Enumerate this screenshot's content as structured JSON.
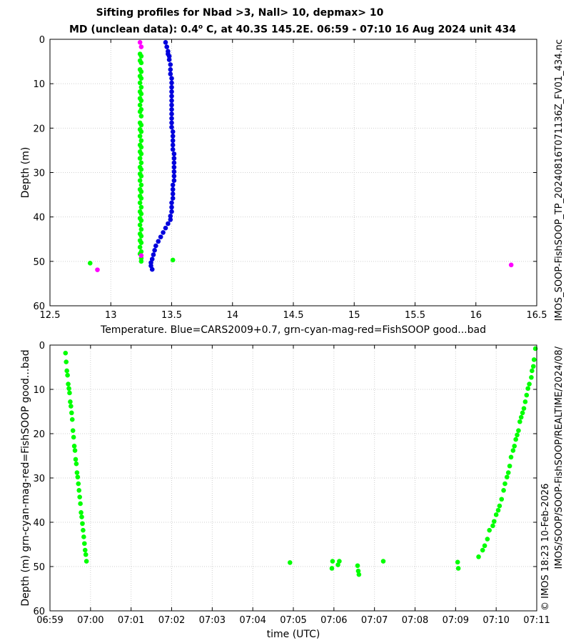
{
  "title_line1": "Sifting profiles for Nbad >3, Nall> 10, depmax> 10",
  "title_line2_pre": "MD (unclean data): 0.4",
  "title_line2_sup": "o",
  "title_line2_post": " C, at 40.3S 145.2E. 06:59 - 07:10 16 Aug 2024 unit 434",
  "side_text_outer": "IMOS_SOOP-FishSOOP_TP_20240816T071136Z_FV01_434.nc",
  "side_text_inner": "IMOS/SOOP/SOOP-FishSOOP/REALTIME/2024/08/",
  "side_text_credit": "© IMOS 18:23 10-Feb-2026",
  "colors": {
    "cars": "#0000dd",
    "good": "#00ff00",
    "bad": "#ff00ff",
    "grid": "#cfcfcf"
  },
  "chart_data": [
    {
      "type": "scatter",
      "title": "",
      "xlabel": "Temperature. Blue=CARS2009+0.7, grn-cyan-mag-red=FishSOOP good...bad",
      "ylabel": "Depth (m)",
      "xlim": [
        12.5,
        16.5
      ],
      "ylim": [
        60,
        0
      ],
      "y_reversed": true,
      "grid": true,
      "xticks": [
        "12.5",
        "13",
        "13.5",
        "14",
        "14.5",
        "15",
        "15.5",
        "16",
        "16.5"
      ],
      "yticks": [
        "0",
        "10",
        "20",
        "30",
        "40",
        "50",
        "60"
      ],
      "series": [
        {
          "name": "CARS2009+0.7",
          "color": "#0000dd",
          "points": [
            [
              13.45,
              0.7
            ],
            [
              13.46,
              1.7
            ],
            [
              13.47,
              2.7
            ],
            [
              13.47,
              3.3
            ],
            [
              13.48,
              3.8
            ],
            [
              13.48,
              4.6
            ],
            [
              13.49,
              5.7
            ],
            [
              13.49,
              6.8
            ],
            [
              13.49,
              7.8
            ],
            [
              13.5,
              8.8
            ],
            [
              13.5,
              9.8
            ],
            [
              13.5,
              10.8
            ],
            [
              13.5,
              11.8
            ],
            [
              13.5,
              12.8
            ],
            [
              13.5,
              13.8
            ],
            [
              13.5,
              14.8
            ],
            [
              13.5,
              15.8
            ],
            [
              13.5,
              16.8
            ],
            [
              13.5,
              17.8
            ],
            [
              13.5,
              18.8
            ],
            [
              13.5,
              19.8
            ],
            [
              13.51,
              20.8
            ],
            [
              13.51,
              21.8
            ],
            [
              13.51,
              22.8
            ],
            [
              13.51,
              23.8
            ],
            [
              13.51,
              24.8
            ],
            [
              13.52,
              25.8
            ],
            [
              13.52,
              26.8
            ],
            [
              13.52,
              27.8
            ],
            [
              13.52,
              28.8
            ],
            [
              13.52,
              29.8
            ],
            [
              13.52,
              30.8
            ],
            [
              13.52,
              31.8
            ],
            [
              13.51,
              32.8
            ],
            [
              13.51,
              33.8
            ],
            [
              13.51,
              34.8
            ],
            [
              13.51,
              35.8
            ],
            [
              13.5,
              36.8
            ],
            [
              13.5,
              37.8
            ],
            [
              13.5,
              38.8
            ],
            [
              13.49,
              39.8
            ],
            [
              13.49,
              40.6
            ],
            [
              13.47,
              41.5
            ],
            [
              13.45,
              42.5
            ],
            [
              13.43,
              43.5
            ],
            [
              13.41,
              44.5
            ],
            [
              13.39,
              45.5
            ],
            [
              13.37,
              46.5
            ],
            [
              13.36,
              47.5
            ],
            [
              13.35,
              48.5
            ],
            [
              13.34,
              49.5
            ],
            [
              13.33,
              50.3
            ],
            [
              13.33,
              51
            ],
            [
              13.34,
              51.8
            ]
          ]
        },
        {
          "name": "good",
          "color": "#00ff00",
          "points": [
            [
              13.24,
              3.3
            ],
            [
              13.25,
              3.8
            ],
            [
              13.24,
              4.8
            ],
            [
              13.25,
              5.3
            ],
            [
              13.24,
              6.8
            ],
            [
              13.25,
              7.3
            ],
            [
              13.24,
              8.3
            ],
            [
              13.25,
              8.8
            ],
            [
              13.24,
              9.8
            ],
            [
              13.25,
              10.8
            ],
            [
              13.24,
              11.8
            ],
            [
              13.25,
              12.3
            ],
            [
              13.24,
              13.3
            ],
            [
              13.25,
              13.8
            ],
            [
              13.24,
              14.8
            ],
            [
              13.25,
              15.8
            ],
            [
              13.24,
              16.3
            ],
            [
              13.25,
              17.3
            ],
            [
              13.24,
              18.8
            ],
            [
              13.25,
              19.3
            ],
            [
              13.24,
              20.3
            ],
            [
              13.25,
              20.8
            ],
            [
              13.24,
              21.8
            ],
            [
              13.25,
              22.8
            ],
            [
              13.24,
              23.8
            ],
            [
              13.25,
              24.3
            ],
            [
              13.24,
              25.3
            ],
            [
              13.25,
              25.8
            ],
            [
              13.24,
              26.8
            ],
            [
              13.25,
              27.8
            ],
            [
              13.24,
              28.8
            ],
            [
              13.25,
              29.3
            ],
            [
              13.24,
              30.3
            ],
            [
              13.25,
              30.8
            ],
            [
              13.24,
              31.8
            ],
            [
              13.25,
              32.8
            ],
            [
              13.24,
              33.8
            ],
            [
              13.25,
              34.3
            ],
            [
              13.24,
              35.3
            ],
            [
              13.25,
              35.8
            ],
            [
              13.24,
              36.8
            ],
            [
              13.25,
              37.8
            ],
            [
              13.24,
              38.8
            ],
            [
              13.25,
              39.3
            ],
            [
              13.24,
              40.3
            ],
            [
              13.25,
              40.8
            ],
            [
              13.24,
              41.8
            ],
            [
              13.25,
              42.8
            ],
            [
              13.24,
              43.8
            ],
            [
              13.25,
              44.3
            ],
            [
              13.24,
              45.3
            ],
            [
              13.25,
              45.8
            ],
            [
              13.24,
              46.8
            ],
            [
              13.25,
              47.8
            ],
            [
              13.24,
              48.3
            ],
            [
              13.25,
              49.3
            ],
            [
              13.25,
              50
            ],
            [
              13.51,
              49.7
            ],
            [
              12.83,
              50.4
            ]
          ]
        },
        {
          "name": "bad",
          "color": "#ff00ff",
          "points": [
            [
              13.24,
              0.7
            ],
            [
              13.25,
              1.7
            ],
            [
              13.25,
              48.7
            ],
            [
              12.89,
              51.9
            ],
            [
              16.29,
              50.8
            ]
          ]
        }
      ]
    },
    {
      "type": "scatter",
      "title": "",
      "xlabel": "time (UTC)",
      "ylabel": "Depth (m) grn-cyan-mag-red=FishSOOP good...bad",
      "xlim": [
        "06:59",
        "07:11"
      ],
      "ylim": [
        60,
        0
      ],
      "y_reversed": true,
      "grid": true,
      "xticks": [
        "06:59",
        "07:00",
        "07:01",
        "07:02",
        "07:03",
        "07:04",
        "07:05",
        "07:06",
        "07:07",
        "07:08",
        "07:09",
        "07:10",
        "07:11"
      ],
      "yticks": [
        "0",
        "10",
        "20",
        "30",
        "40",
        "50",
        "60"
      ],
      "series": [
        {
          "name": "good",
          "color": "#00ff00",
          "points": [
            [
              "06:59:23",
              1.8
            ],
            [
              "06:59:24",
              3.8
            ],
            [
              "06:59:25",
              5.8
            ],
            [
              "06:59:26",
              6.8
            ],
            [
              "06:59:27",
              8.8
            ],
            [
              "06:59:28",
              9.8
            ],
            [
              "06:59:29",
              10.8
            ],
            [
              "06:59:30",
              12.8
            ],
            [
              "06:59:31",
              13.8
            ],
            [
              "06:59:32",
              15.3
            ],
            [
              "06:59:33",
              16.8
            ],
            [
              "06:59:34",
              19.3
            ],
            [
              "06:59:35",
              20.8
            ],
            [
              "06:59:36",
              22.8
            ],
            [
              "06:59:37",
              23.8
            ],
            [
              "06:59:38",
              25.8
            ],
            [
              "06:59:39",
              26.8
            ],
            [
              "06:59:40",
              28.8
            ],
            [
              "06:59:41",
              29.8
            ],
            [
              "06:59:42",
              31.3
            ],
            [
              "06:59:43",
              32.8
            ],
            [
              "06:59:44",
              34.3
            ],
            [
              "06:59:45",
              35.8
            ],
            [
              "06:59:46",
              37.8
            ],
            [
              "06:59:47",
              38.8
            ],
            [
              "06:59:48",
              40.3
            ],
            [
              "06:59:49",
              41.8
            ],
            [
              "06:59:50",
              43.3
            ],
            [
              "06:59:51",
              44.8
            ],
            [
              "06:59:52",
              46.3
            ],
            [
              "06:59:53",
              47.3
            ],
            [
              "06:59:54",
              48.8
            ],
            [
              "07:04:55",
              49.1
            ],
            [
              "07:05:57",
              50.4
            ],
            [
              "07:05:58",
              48.8
            ],
            [
              "07:06:06",
              49.6
            ],
            [
              "07:06:08",
              48.8
            ],
            [
              "07:06:35",
              49.8
            ],
            [
              "07:06:36",
              51
            ],
            [
              "07:06:37",
              51.8
            ],
            [
              "07:07:13",
              48.8
            ],
            [
              "07:09:03",
              49
            ],
            [
              "07:09:04",
              50.4
            ],
            [
              "07:09:34",
              47.8
            ],
            [
              "07:09:40",
              46.3
            ],
            [
              "07:09:43",
              45.3
            ],
            [
              "07:09:47",
              43.8
            ],
            [
              "07:09:50",
              41.8
            ],
            [
              "07:09:55",
              40.8
            ],
            [
              "07:09:57",
              39.8
            ],
            [
              "07:10:00",
              38.3
            ],
            [
              "07:10:03",
              37.3
            ],
            [
              "07:10:05",
              36.3
            ],
            [
              "07:10:08",
              34.8
            ],
            [
              "07:10:11",
              32.8
            ],
            [
              "07:10:13",
              31.3
            ],
            [
              "07:10:16",
              29.8
            ],
            [
              "07:10:18",
              28.8
            ],
            [
              "07:10:20",
              27.3
            ],
            [
              "07:10:22",
              25.3
            ],
            [
              "07:10:25",
              23.8
            ],
            [
              "07:10:27",
              22.8
            ],
            [
              "07:10:29",
              21.3
            ],
            [
              "07:10:31",
              20.3
            ],
            [
              "07:10:33",
              19.3
            ],
            [
              "07:10:35",
              17.3
            ],
            [
              "07:10:37",
              16.3
            ],
            [
              "07:10:39",
              15.3
            ],
            [
              "07:10:41",
              14.3
            ],
            [
              "07:10:43",
              12.8
            ],
            [
              "07:10:45",
              11.3
            ],
            [
              "07:10:47",
              9.8
            ],
            [
              "07:10:49",
              8.8
            ],
            [
              "07:10:52",
              7.3
            ],
            [
              "07:10:53",
              5.8
            ],
            [
              "07:10:55",
              4.8
            ],
            [
              "07:10:56",
              3.3
            ],
            [
              "07:10:58",
              0.8
            ]
          ]
        }
      ]
    }
  ]
}
